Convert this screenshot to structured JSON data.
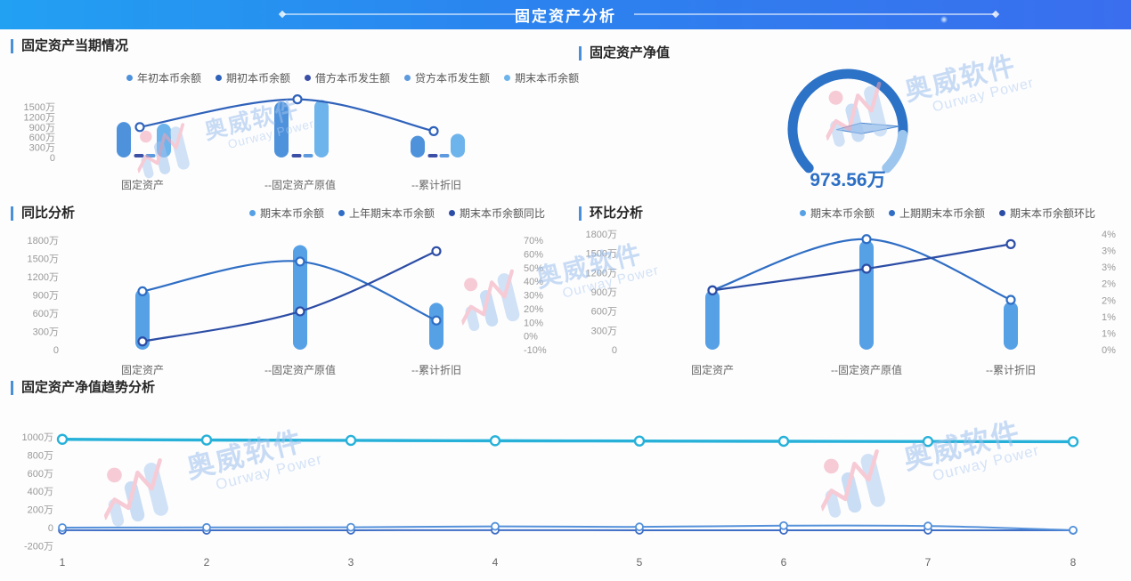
{
  "header": {
    "title": "固定资产分析"
  },
  "watermark": {
    "brand": "奥威软件",
    "brand_en": "Ourway Power"
  },
  "panels": {
    "current": {
      "title": "固定资产当期情况"
    },
    "net_value": {
      "title": "固定资产净值",
      "value": "973.56万"
    },
    "yoy": {
      "title": "同比分析"
    },
    "mom": {
      "title": "环比分析"
    },
    "trend": {
      "title": "固定资产净值趋势分析"
    }
  },
  "colors": {
    "accent": "#4a90d9",
    "gauge_main": "#2c72c6",
    "gauge_light": "#9dc6ee",
    "teal_line": "#27b1d9"
  },
  "chart_data": [
    {
      "id": "current",
      "type": "bar",
      "title": "固定资产当期情况",
      "unit": "万",
      "categories": [
        "固定资产",
        "--固定资产原值",
        "--累计折旧"
      ],
      "y_left": {
        "labels": [
          "1500万",
          "1200万",
          "900万",
          "600万",
          "300万",
          "0"
        ],
        "lim": [
          0,
          1750
        ]
      },
      "series": [
        {
          "name": "年初本币余额",
          "kind": "bar",
          "color": "#4e92dc",
          "values": [
            1050,
            1650,
            640
          ]
        },
        {
          "name": "期初本币余额",
          "kind": "line",
          "color": "#2f62ba",
          "values": [
            900,
            1720,
            780
          ]
        },
        {
          "name": "借方本币发生额",
          "kind": "bar",
          "color": "#3a4fa5",
          "values": [
            35,
            45,
            18
          ]
        },
        {
          "name": "贷方本币发生额",
          "kind": "bar",
          "color": "#5e9ade",
          "values": [
            18,
            22,
            10
          ]
        },
        {
          "name": "期末本币余额",
          "kind": "bar",
          "color": "#6db3ec",
          "values": [
            1000,
            1700,
            700
          ]
        }
      ]
    },
    {
      "id": "gauge",
      "type": "pie",
      "title": "固定资产净值",
      "value": 973.56,
      "unit": "万",
      "value_label": "973.56万",
      "arc_colors": [
        "#2c72c6",
        "#9dc6ee"
      ]
    },
    {
      "id": "yoy",
      "type": "bar",
      "title": "同比分析",
      "unit": "万",
      "categories": [
        "固定资产",
        "--固定资产原值",
        "--累计折旧"
      ],
      "y_left": {
        "labels": [
          "1800万",
          "1500万",
          "1200万",
          "900万",
          "600万",
          "300万",
          "0"
        ],
        "lim": [
          0,
          1800
        ]
      },
      "y_right": {
        "labels": [
          "70%",
          "60%",
          "50%",
          "40%",
          "30%",
          "20%",
          "10%",
          "0%",
          "-10%"
        ],
        "lim": [
          -10,
          70
        ]
      },
      "series": [
        {
          "name": "期末本币余额",
          "kind": "bar",
          "color": "#56a0e6",
          "values": [
            1000,
            1720,
            770
          ]
        },
        {
          "name": "上年期末本币余额",
          "kind": "line",
          "color": "#2f6ec4",
          "values": [
            960,
            1450,
            480
          ]
        },
        {
          "name": "期末本币余额同比",
          "kind": "line",
          "axis": "right",
          "color": "#2c4da5",
          "values": [
            -4,
            18,
            62
          ]
        }
      ]
    },
    {
      "id": "mom",
      "type": "bar",
      "title": "环比分析",
      "unit": "万",
      "categories": [
        "固定资产",
        "--固定资产原值",
        "--累计折旧"
      ],
      "y_left": {
        "labels": [
          "1800万",
          "1500万",
          "1200万",
          "900万",
          "600万",
          "300万",
          "0"
        ],
        "lim": [
          0,
          1800
        ]
      },
      "y_right": {
        "labels": [
          "4%",
          "3%",
          "3%",
          "2%",
          "2%",
          "1%",
          "1%",
          "0%"
        ],
        "lim": [
          0,
          4
        ]
      },
      "series": [
        {
          "name": "期末本币余额",
          "kind": "bar",
          "color": "#56a0e6",
          "values": [
            925,
            1700,
            745
          ]
        },
        {
          "name": "上期期末本币余额",
          "kind": "line",
          "color": "#2f6ec4",
          "values": [
            925,
            1720,
            775
          ]
        },
        {
          "name": "期末本币余额环比",
          "kind": "line",
          "axis": "right",
          "color": "#2c4da5",
          "values": [
            2.05,
            2.8,
            3.65
          ]
        }
      ]
    },
    {
      "id": "trend",
      "type": "line",
      "title": "固定资产净值趋势分析",
      "unit": "万",
      "x": [
        "1",
        "2",
        "3",
        "4",
        "5",
        "6",
        "7",
        "8"
      ],
      "y_left": {
        "labels": [
          "1000万",
          "800万",
          "600万",
          "400万",
          "200万",
          "0",
          "-200万"
        ],
        "lim": [
          -280,
          1020
        ]
      },
      "series": [
        {
          "name": "",
          "kind": "line",
          "color": "#3f6ec6",
          "values": [
            -28,
            -30,
            -29,
            -28,
            -29,
            -30,
            -29,
            -30
          ]
        },
        {
          "name": "",
          "kind": "line",
          "color": "#5591da",
          "values": [
            0,
            2,
            4,
            14,
            8,
            22,
            18,
            -28
          ]
        },
        {
          "name": "固定资产净值",
          "kind": "line",
          "color": "#27b1d9",
          "values": [
            973,
            965,
            961,
            957,
            954,
            951,
            949,
            947
          ]
        }
      ]
    }
  ]
}
